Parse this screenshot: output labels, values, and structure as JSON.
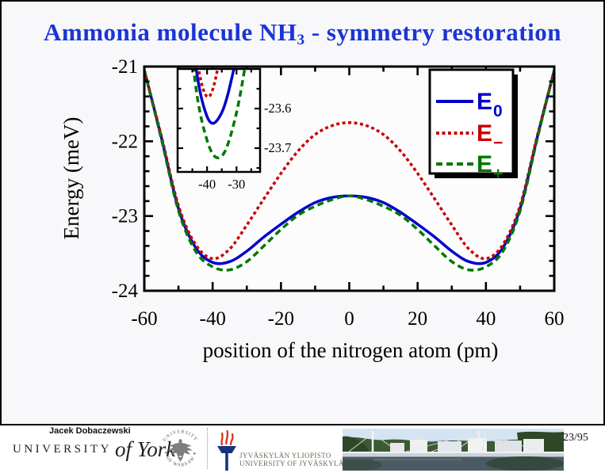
{
  "slide": {
    "title": {
      "prefix": "Ammonia molecule NH",
      "subscript": "3",
      "suffix": " - symmetry restoration"
    },
    "title_color": "#1b35d6"
  },
  "chart_data": {
    "type": "line",
    "title": "",
    "xlabel": "position of the nitrogen atom (pm)",
    "ylabel": "Energy (meV)",
    "xlim": [
      -60,
      60
    ],
    "ylim": [
      -24,
      -21
    ],
    "x_major_ticks": [
      -60,
      -40,
      -20,
      0,
      20,
      40,
      60
    ],
    "x_minor_step": 10,
    "y_major_ticks": [
      -21,
      -22,
      -23,
      -24
    ],
    "y_minor_step": 0.2,
    "grid": false,
    "legend_position": "top-right",
    "x": [
      -60,
      -55,
      -50,
      -45,
      -40,
      -35,
      -30,
      -25,
      -20,
      -15,
      -10,
      -5,
      0,
      5,
      10,
      15,
      20,
      25,
      30,
      35,
      40,
      45,
      50,
      55,
      60
    ],
    "series": [
      {
        "name": "E0",
        "label": "E",
        "sub": "0",
        "color": "#0000cc",
        "dash": [],
        "width": 3.5,
        "values": [
          -21.05,
          -21.95,
          -22.9,
          -23.42,
          -23.62,
          -23.61,
          -23.47,
          -23.28,
          -23.11,
          -22.95,
          -22.82,
          -22.75,
          -22.73,
          -22.75,
          -22.82,
          -22.95,
          -23.11,
          -23.28,
          -23.47,
          -23.61,
          -23.62,
          -23.42,
          -22.9,
          -21.95,
          -21.05
        ]
      },
      {
        "name": "E-",
        "label": "E",
        "sub": "−",
        "color": "#cc0000",
        "dash": [
          4,
          3.5
        ],
        "width": 3.5,
        "values": [
          -21.05,
          -21.93,
          -22.86,
          -23.38,
          -23.57,
          -23.44,
          -23.12,
          -22.77,
          -22.43,
          -22.13,
          -21.91,
          -21.79,
          -21.75,
          -21.79,
          -21.91,
          -22.13,
          -22.43,
          -22.77,
          -23.12,
          -23.44,
          -23.57,
          -23.38,
          -22.86,
          -21.93,
          -21.05
        ]
      },
      {
        "name": "E+",
        "label": "E",
        "sub": "+",
        "color": "#007700",
        "dash": [
          8,
          5
        ],
        "width": 3.5,
        "values": [
          -21.05,
          -21.97,
          -22.93,
          -23.47,
          -23.68,
          -23.72,
          -23.61,
          -23.4,
          -23.18,
          -22.99,
          -22.87,
          -22.78,
          -22.73,
          -22.78,
          -22.87,
          -22.99,
          -23.18,
          -23.4,
          -23.61,
          -23.72,
          -23.68,
          -23.47,
          -22.93,
          -21.97,
          -21.05
        ]
      }
    ],
    "inset": {
      "xlim": [
        -50,
        -22
      ],
      "ylim": [
        -23.76,
        -23.5
      ],
      "x_major_ticks": [
        -40,
        -30
      ],
      "x_minor_ticks": [
        -45,
        -35,
        -25
      ],
      "x_tick_labels": [
        "-40",
        "-30"
      ],
      "y_major_ticks": [
        -23.6,
        -23.7
      ],
      "y_minor_ticks": [
        -23.55,
        -23.65,
        -23.75
      ],
      "y_tick_labels": [
        "-23.6",
        "-23.7"
      ]
    }
  },
  "footer": {
    "author": "Jacek Dobaczewski",
    "page_number": "23/95",
    "york": {
      "caps": "UNIVERSITY",
      "script": "of York"
    },
    "warsaw": {
      "arc_top": "UNIVERSITY",
      "arc_bottom": "✶ OF WARSAW ✶"
    },
    "jyu": {
      "line1": "JYVÄSKYLÄN YLIOPISTO",
      "line2": "UNIVERSITY OF JYVÄSKYLÄ"
    }
  }
}
